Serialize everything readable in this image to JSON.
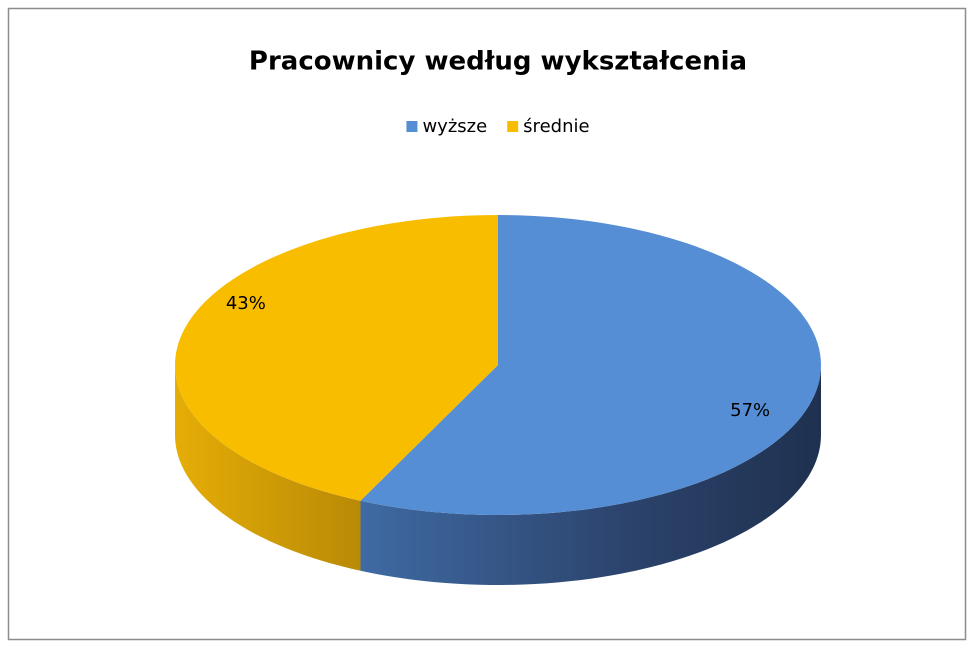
{
  "chart_data": {
    "type": "pie",
    "title": "Pracownicy według wykształcenia",
    "categories": [
      "wyższe",
      "średnie"
    ],
    "values": [
      57,
      43
    ],
    "value_labels": [
      "57%",
      "43%"
    ],
    "colors": [
      "#558ed5",
      "#f9bd00"
    ],
    "legend": "top"
  }
}
